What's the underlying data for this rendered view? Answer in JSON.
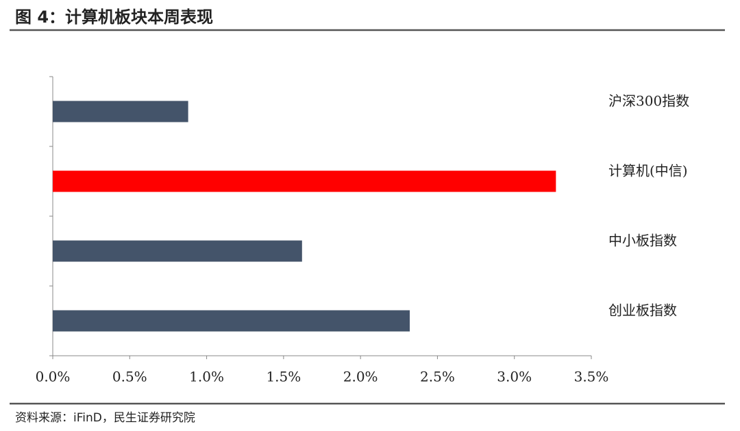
{
  "header": {
    "title": "图 4：计算机板块本周表现"
  },
  "chart_data": {
    "type": "bar",
    "orientation": "horizontal",
    "categories": [
      "沪深300指数",
      "计算机(中信)",
      "中小板指数",
      "创业板指数"
    ],
    "values": [
      0.88,
      3.27,
      1.62,
      2.32
    ],
    "colors": [
      "#44546a",
      "#ff0000",
      "#44546a",
      "#44546a"
    ],
    "xlim": [
      0,
      3.5
    ],
    "xticks": [
      {
        "value": 0,
        "label": "0.0%"
      },
      {
        "value": 0.5,
        "label": "0.5%"
      },
      {
        "value": 1,
        "label": "1.0%"
      },
      {
        "value": 1.5,
        "label": "1.5%"
      },
      {
        "value": 2,
        "label": "2.0%"
      },
      {
        "value": 2.5,
        "label": "2.5%"
      },
      {
        "value": 3,
        "label": "3.0%"
      },
      {
        "value": 3.5,
        "label": "3.5%"
      }
    ],
    "grid": false
  },
  "footer": {
    "source": "资料来源：iFinD，民生证券研究院"
  }
}
